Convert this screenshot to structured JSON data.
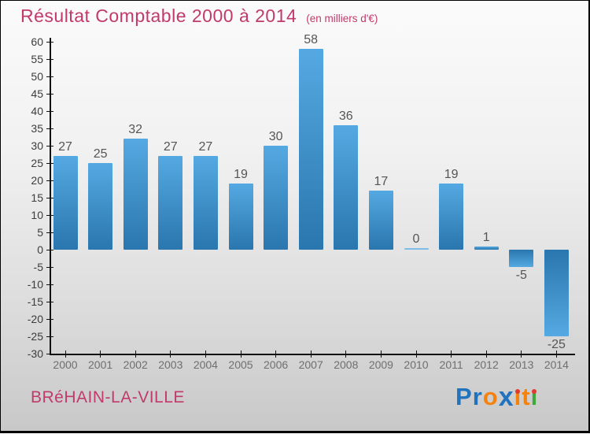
{
  "chart_data": {
    "type": "bar",
    "title": "Résultat Comptable 2000 à 2014",
    "subtitle": "(en milliers d'€)",
    "categories": [
      "2000",
      "2001",
      "2002",
      "2003",
      "2004",
      "2005",
      "2006",
      "2007",
      "2008",
      "2009",
      "2010",
      "2011",
      "2012",
      "2013",
      "2014"
    ],
    "values": [
      27,
      25,
      32,
      27,
      27,
      19,
      30,
      58,
      36,
      17,
      0,
      19,
      1,
      -5,
      -25
    ],
    "xlabel": "",
    "ylabel": "",
    "ylim": [
      -30,
      60
    ],
    "ytick_step": 5,
    "grid": false,
    "legend": false,
    "bar_gradient_light": "#55a9e2",
    "bar_gradient_dark": "#2a76ae",
    "zero_bar_color": "#7fbce8",
    "axis_color": "#111111",
    "value_label_color": "#555555"
  },
  "colors": {
    "title": "#c13a6b",
    "place": "#c13a6b",
    "ytick_label": "#3c3c3c",
    "year_label": "#6f6f6f"
  },
  "footer": {
    "place": "BRéHAIN-LA-VILLE",
    "logo": {
      "name": "Proxiti",
      "letters": [
        {
          "ch": "P",
          "color": "#2173be"
        },
        {
          "ch": "r",
          "color": "#2173be"
        },
        {
          "ch": "o",
          "color": "#f5820d"
        },
        {
          "ch": "x",
          "color": "#2173be"
        },
        {
          "ch": "i",
          "color": "#f5820d",
          "dot": "#e23a2e"
        },
        {
          "ch": "t",
          "color": "#f5820d"
        },
        {
          "ch": "i",
          "color": "#3faa3a",
          "dot": "#e23a2e"
        }
      ]
    }
  }
}
